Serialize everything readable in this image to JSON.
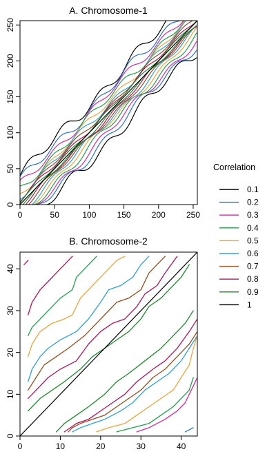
{
  "chart_data": [
    {
      "type": "line",
      "title": "A. Chromosome-1",
      "xlabel": "",
      "ylabel": "",
      "xlim": [
        0,
        256
      ],
      "ylim": [
        0,
        256
      ],
      "xticks": [
        "0",
        "50",
        "100",
        "150",
        "200",
        "250"
      ],
      "yticks": [
        "0",
        "50",
        "100",
        "150",
        "200",
        "250"
      ],
      "bands": [
        {
          "level": "0.1",
          "offset": 40,
          "wave": 7
        },
        {
          "level": "0.2",
          "offset": 32,
          "wave": 6
        },
        {
          "level": "0.3",
          "offset": 26,
          "wave": 5
        },
        {
          "level": "0.4",
          "offset": 20,
          "wave": 5
        },
        {
          "level": "0.5",
          "offset": 15,
          "wave": 4
        },
        {
          "level": "0.6",
          "offset": 11,
          "wave": 4
        },
        {
          "level": "0.7",
          "offset": 8,
          "wave": 3
        },
        {
          "level": "0.8",
          "offset": 5,
          "wave": 3
        },
        {
          "level": "0.9",
          "offset": 3,
          "wave": 2
        }
      ],
      "diagonal": {
        "level": "1"
      }
    },
    {
      "type": "line",
      "title": "B. Chromosome-2",
      "xlabel": "",
      "ylabel": "",
      "xlim": [
        0,
        44
      ],
      "ylim": [
        0,
        44
      ],
      "xticks": [
        "0",
        "10",
        "20",
        "30",
        "40"
      ],
      "yticks": [
        "0",
        "10",
        "20",
        "30",
        "40"
      ],
      "series": [
        {
          "level": "0.8",
          "points": [
            [
              1,
              41
            ],
            [
              2,
              42
            ]
          ]
        },
        {
          "level": "0.8",
          "points": [
            [
              2,
              29
            ],
            [
              3,
              32
            ],
            [
              5,
              35
            ],
            [
              7,
              37
            ],
            [
              9,
              39
            ],
            [
              11,
              41
            ],
            [
              13,
              43
            ]
          ]
        },
        {
          "level": "0.4",
          "points": [
            [
              2,
              24
            ],
            [
              3,
              26
            ],
            [
              5,
              28
            ],
            [
              8,
              31
            ],
            [
              10,
              33
            ],
            [
              13,
              35
            ],
            [
              14,
              38
            ],
            [
              16,
              40
            ],
            [
              19,
              43
            ]
          ]
        },
        {
          "level": "0.5",
          "points": [
            [
              2,
              19
            ],
            [
              3,
              22
            ],
            [
              5,
              25
            ],
            [
              8,
              27
            ],
            [
              11,
              28
            ],
            [
              13,
              29
            ],
            [
              15,
              33
            ],
            [
              18,
              36
            ],
            [
              21,
              39
            ],
            [
              24,
              42
            ],
            [
              26,
              43
            ]
          ]
        },
        {
          "level": "0.6",
          "points": [
            [
              2,
              13
            ],
            [
              3,
              16
            ],
            [
              5,
              19
            ],
            [
              7,
              21
            ],
            [
              10,
              23
            ],
            [
              14,
              25
            ],
            [
              17,
              28
            ],
            [
              20,
              32
            ],
            [
              22,
              35
            ],
            [
              25,
              36
            ],
            [
              28,
              38
            ],
            [
              30,
              41
            ],
            [
              32,
              43
            ]
          ]
        },
        {
          "level": "0.7",
          "points": [
            [
              2,
              11
            ],
            [
              4,
              14
            ],
            [
              6,
              17
            ],
            [
              9,
              19
            ],
            [
              12,
              21
            ],
            [
              16,
              24
            ],
            [
              19,
              27
            ],
            [
              22,
              30
            ],
            [
              24,
              32
            ],
            [
              27,
              33
            ],
            [
              30,
              35
            ],
            [
              32,
              39
            ],
            [
              34,
              41
            ],
            [
              36,
              43
            ]
          ]
        },
        {
          "level": "0.8",
          "points": [
            [
              2,
              9
            ],
            [
              4,
              11
            ],
            [
              7,
              14
            ],
            [
              10,
              16
            ],
            [
              14,
              18
            ],
            [
              17,
              22
            ],
            [
              20,
              25
            ],
            [
              23,
              27
            ],
            [
              26,
              28
            ],
            [
              29,
              31
            ],
            [
              31,
              34
            ],
            [
              34,
              36
            ],
            [
              36,
              39
            ],
            [
              39,
              43
            ]
          ]
        },
        {
          "level": "0.9",
          "points": [
            [
              2,
              6
            ],
            [
              5,
              9
            ],
            [
              8,
              11
            ],
            [
              11,
              13
            ],
            [
              15,
              16
            ],
            [
              18,
              19
            ],
            [
              21,
              21
            ],
            [
              24,
              23
            ],
            [
              27,
              25
            ],
            [
              30,
              28
            ],
            [
              32,
              31
            ],
            [
              35,
              33
            ],
            [
              37,
              35
            ],
            [
              40,
              38
            ],
            [
              42,
              41
            ]
          ]
        },
        {
          "level": "0.9",
          "points": [
            [
              9,
              1
            ],
            [
              11,
              3
            ],
            [
              14,
              5
            ],
            [
              17,
              7
            ],
            [
              21,
              10
            ],
            [
              24,
              13
            ],
            [
              27,
              15
            ],
            [
              31,
              18
            ],
            [
              35,
              21
            ],
            [
              38,
              24
            ],
            [
              41,
              27
            ],
            [
              43,
              30
            ]
          ]
        },
        {
          "level": "0.8",
          "points": [
            [
              11,
              1
            ],
            [
              14,
              3
            ],
            [
              17,
              4
            ],
            [
              20,
              6
            ],
            [
              23,
              8
            ],
            [
              26,
              10
            ],
            [
              29,
              13
            ],
            [
              33,
              16
            ],
            [
              36,
              18
            ],
            [
              39,
              21
            ],
            [
              42,
              25
            ],
            [
              44,
              28
            ]
          ]
        },
        {
          "level": "0.7",
          "points": [
            [
              12,
              1
            ],
            [
              13,
              2
            ],
            [
              15,
              3
            ],
            [
              18,
              4
            ],
            [
              21,
              5
            ],
            [
              24,
              7
            ],
            [
              27,
              9
            ],
            [
              30,
              11
            ],
            [
              33,
              14
            ],
            [
              36,
              16
            ],
            [
              39,
              19
            ],
            [
              42,
              22
            ],
            [
              44,
              25
            ]
          ]
        },
        {
          "level": "0.6",
          "points": [
            [
              13,
              1
            ],
            [
              15,
              2
            ],
            [
              18,
              3
            ],
            [
              21,
              4
            ],
            [
              25,
              6
            ],
            [
              28,
              8
            ],
            [
              31,
              11
            ],
            [
              34,
              13
            ],
            [
              37,
              15
            ],
            [
              40,
              18
            ],
            [
              42,
              21
            ],
            [
              44,
              24
            ]
          ]
        },
        {
          "level": "0.5",
          "points": [
            [
              19,
              1
            ],
            [
              22,
              2
            ],
            [
              26,
              3
            ],
            [
              29,
              5
            ],
            [
              32,
              7
            ],
            [
              35,
              9
            ],
            [
              38,
              11
            ],
            [
              40,
              14
            ],
            [
              42,
              17
            ],
            [
              43,
              21
            ],
            [
              44,
              24
            ]
          ]
        },
        {
          "level": "0.4",
          "points": [
            [
              24,
              1
            ],
            [
              28,
              2
            ],
            [
              32,
              3
            ],
            [
              35,
              5
            ],
            [
              38,
              7
            ],
            [
              40,
              9
            ],
            [
              42,
              11
            ],
            [
              43,
              14
            ]
          ]
        },
        {
          "level": "0.3",
          "points": [
            [
              29,
              1
            ],
            [
              32,
              2
            ],
            [
              36,
              4
            ],
            [
              39,
              6
            ],
            [
              41,
              8
            ],
            [
              42,
              10
            ],
            [
              43,
              12
            ],
            [
              44,
              14
            ]
          ]
        },
        {
          "level": "0.2",
          "points": [
            [
              41,
              1
            ],
            [
              43,
              2
            ]
          ]
        }
      ],
      "diagonal": {
        "level": "1"
      }
    }
  ],
  "legend": {
    "title": "Correlation",
    "placement": "right",
    "entries": [
      {
        "label": "0.1",
        "color": "#000000"
      },
      {
        "label": "0.2",
        "color": "#2a6fd6"
      },
      {
        "label": "0.3",
        "color": "#d12aa8"
      },
      {
        "label": "0.4",
        "color": "#1ea04a"
      },
      {
        "label": "0.5",
        "color": "#f2a23a"
      },
      {
        "label": "0.6",
        "color": "#2aa0e0"
      },
      {
        "label": "0.7",
        "color": "#9a4a1c"
      },
      {
        "label": "0.8",
        "color": "#b0125a"
      },
      {
        "label": "0.9",
        "color": "#1a8a2a"
      },
      {
        "label": "1",
        "color": "#000000"
      }
    ]
  }
}
